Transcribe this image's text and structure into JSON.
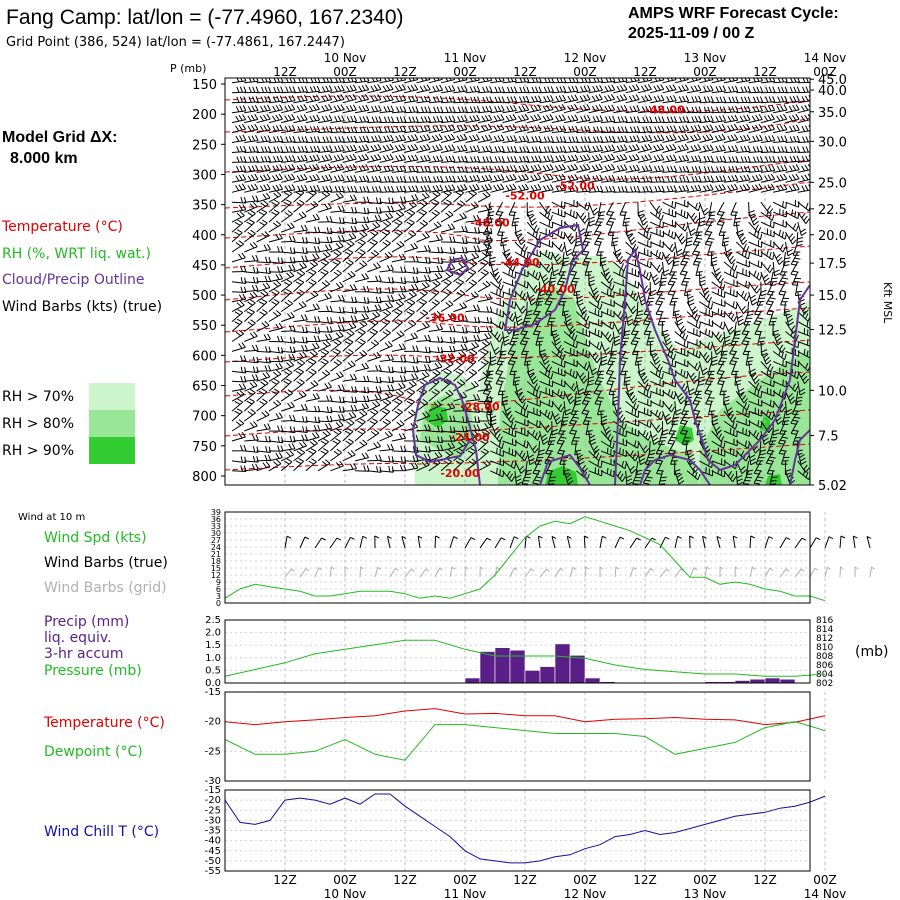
{
  "header": {
    "title": "Fang Camp:  lat/lon = (-77.4960, 167.2340)",
    "grid_point": "Grid Point (386, 524) lat/lon = (-77.4861, 167.2447)",
    "cycle_label": "AMPS WRF Forecast Cycle:",
    "cycle_value": "2025-11-09 / 00  Z",
    "model_grid_label": "Model Grid ΔX:",
    "model_grid_value": "8.000 km"
  },
  "colors": {
    "temperature": "#e00000",
    "rh": "#22bb22",
    "cloud": "#663399",
    "wind": "#000000",
    "wind_grid": "#b0b0b0",
    "precip_bar": "#5a1f86",
    "pressure": "#22bb22",
    "wind_chill": "#1010a0",
    "rh70": "#ccf5cc",
    "rh80": "#99e699",
    "rh90": "#33cc33"
  },
  "time_axis": {
    "tick_labels": [
      "12Z",
      "00Z",
      "12Z",
      "00Z",
      "12Z",
      "00Z",
      "12Z",
      "00Z",
      "12Z",
      "00Z"
    ],
    "date_labels": [
      "10 Nov",
      "11 Nov",
      "12 Nov",
      "13 Nov",
      "14 Nov"
    ],
    "date_label_tick_index": [
      1,
      3,
      5,
      7,
      9
    ]
  },
  "legend_upper": {
    "temperature": "Temperature (°C)",
    "rh": "RH (%, WRT liq. wat.)",
    "cloud": "Cloud/Precip Outline",
    "wind": "Wind Barbs (kts) (true)",
    "rh70": "RH > 70%",
    "rh80": "RH > 80%",
    "rh90": "RH > 90%"
  },
  "legend_lower": {
    "wind10m": "Wind at 10 m",
    "wind_spd": "Wind Spd (kts)",
    "wind_barbs_true": "Wind Barbs (true)",
    "wind_barbs_grid": "Wind Barbs (grid)",
    "precip_l1": "Precip (mm)",
    "precip_l2": "liq. equiv.",
    "precip_l3": "3-hr accum",
    "pressure": "Pressure (mb)",
    "temperature": "Temperature (°C)",
    "dewpoint": "Dewpoint (°C)",
    "wind_chill": "Wind Chill T (°C)",
    "pressure_unit": "(mb)"
  },
  "chart_data": [
    {
      "type": "area",
      "name": "time-height cross section",
      "ylabel": "P (mb)",
      "ylabel_right": "Kft MSL",
      "pressure_ticks": [
        "150",
        "200",
        "250",
        "300",
        "350",
        "400",
        "450",
        "500",
        "550",
        "600",
        "650",
        "700",
        "750",
        "800"
      ],
      "pressure_range": [
        140,
        815
      ],
      "height_ticks": [
        {
          "label": "45.0",
          "p": 142
        },
        {
          "label": "40.0",
          "p": 160
        },
        {
          "label": "35.0",
          "p": 196
        },
        {
          "label": "30.0",
          "p": 245
        },
        {
          "label": "25.0",
          "p": 313
        },
        {
          "label": "22.5",
          "p": 357
        },
        {
          "label": "20.0",
          "p": 400
        },
        {
          "label": "17.5",
          "p": 447
        },
        {
          "label": "15.0",
          "p": 500
        },
        {
          "label": "12.5",
          "p": 557
        },
        {
          "label": "10.0",
          "p": 658
        },
        {
          "label": "7.5",
          "p": 733
        },
        {
          "label": "5.02",
          "p": 815
        }
      ],
      "temperature_contours": [
        {
          "label": "-48.00",
          "t": 76,
          "p": 192
        },
        {
          "label": "-52.00",
          "t": 58,
          "p": 318
        },
        {
          "label": "-52.00",
          "t": 48,
          "p": 335
        },
        {
          "label": "-48.00",
          "t": 41,
          "p": 380
        },
        {
          "label": "-44.00",
          "t": 47,
          "p": 445
        },
        {
          "label": "-40.00",
          "t": 54,
          "p": 490
        },
        {
          "label": "-36.00",
          "t": 32,
          "p": 537
        },
        {
          "label": "-32.00",
          "t": 34,
          "p": 605
        },
        {
          "label": "-28.00",
          "t": 39,
          "p": 685
        },
        {
          "label": "-24.00",
          "t": 37,
          "p": 735
        },
        {
          "label": "-20.00",
          "t": 35,
          "p": 795
        }
      ]
    },
    {
      "type": "line",
      "name": "Wind Spd (kts)",
      "ylim": [
        0,
        39
      ],
      "y_ticks": [
        "39",
        "36",
        "33",
        "30",
        "27",
        "24",
        "21",
        "18",
        "15",
        "12",
        "9",
        "6",
        "3",
        "0"
      ],
      "x_hours": [
        0,
        3,
        6,
        9,
        12,
        15,
        18,
        21,
        24,
        27,
        30,
        33,
        36,
        39,
        42,
        45,
        48,
        51,
        54,
        57,
        60,
        63,
        66,
        69,
        72,
        75,
        78,
        81,
        84,
        87,
        90,
        93,
        96,
        99,
        102,
        105,
        108,
        111,
        114,
        117,
        120
      ],
      "values": [
        2,
        6,
        8,
        7,
        6,
        5,
        3,
        3,
        4,
        5,
        5,
        5,
        4,
        2,
        3,
        2,
        4,
        6,
        12,
        20,
        28,
        33,
        35,
        34,
        37,
        35,
        33,
        31,
        28,
        25,
        18,
        11,
        11,
        8,
        9,
        8,
        6,
        5,
        3,
        3,
        1
      ]
    },
    {
      "type": "bar",
      "name": "Precip (mm) liq. equiv. 3-hr accum",
      "ylim": [
        0,
        2.5
      ],
      "y_ticks": [
        "2.5",
        "2.0",
        "1.5",
        "1.0",
        "0.5",
        "0.0"
      ],
      "bar_hours": [
        48,
        51,
        54,
        57,
        60,
        63,
        66,
        69,
        72,
        75,
        96,
        99,
        102,
        105,
        108,
        111
      ],
      "values": [
        0.2,
        1.25,
        1.4,
        1.3,
        0.5,
        0.65,
        1.55,
        1.1,
        0.2,
        0.05,
        0.05,
        0.05,
        0.1,
        0.15,
        0.2,
        0.15
      ],
      "pressure_series": {
        "name": "Pressure (mb)",
        "ylim": [
          802,
          816
        ],
        "right_ticks": [
          "816",
          "814",
          "812",
          "810",
          "808",
          "806",
          "804",
          "802"
        ],
        "x_hours": [
          0,
          6,
          12,
          18,
          24,
          30,
          36,
          42,
          48,
          54,
          60,
          66,
          72,
          78,
          84,
          90,
          96,
          102,
          108,
          114,
          120
        ],
        "values": [
          803.5,
          805,
          806.5,
          808.5,
          809.5,
          810.5,
          811.5,
          811.5,
          809.5,
          808,
          808,
          808,
          807.5,
          806,
          805,
          804.5,
          804,
          804,
          803.5,
          803.5,
          804
        ]
      }
    },
    {
      "type": "line",
      "name": "Temperature / Dewpoint (°C)",
      "ylim": [
        -30,
        -15
      ],
      "y_ticks": [
        "-15",
        "-20",
        "-25",
        "-30"
      ],
      "series": [
        {
          "name": "Temperature",
          "x_hours": [
            0,
            6,
            12,
            18,
            24,
            30,
            36,
            42,
            48,
            54,
            60,
            66,
            72,
            78,
            84,
            90,
            96,
            102,
            108,
            114,
            120
          ],
          "values": [
            -20,
            -20.5,
            -20,
            -19.7,
            -19.3,
            -19,
            -18.2,
            -17.8,
            -18.7,
            -18.6,
            -19,
            -19,
            -20,
            -19.6,
            -19.5,
            -19.3,
            -19.6,
            -19.7,
            -20.5,
            -20.1,
            -19
          ]
        },
        {
          "name": "Dewpoint",
          "x_hours": [
            0,
            6,
            12,
            18,
            24,
            30,
            36,
            42,
            48,
            54,
            60,
            66,
            72,
            78,
            84,
            90,
            96,
            102,
            108,
            114,
            120
          ],
          "values": [
            -23,
            -25.5,
            -25.5,
            -25,
            -23,
            -25.5,
            -26.5,
            -20.5,
            -20.5,
            -21,
            -21.5,
            -22,
            -22,
            -22,
            -22.5,
            -25.5,
            -24.5,
            -23.5,
            -21,
            -20,
            -21.5
          ]
        }
      ]
    },
    {
      "type": "line",
      "name": "Wind Chill T (°C)",
      "ylim": [
        -55,
        -15
      ],
      "y_ticks": [
        "-15",
        "-20",
        "-25",
        "-30",
        "-35",
        "-40",
        "-45",
        "-50",
        "-55"
      ],
      "x_hours": [
        0,
        3,
        6,
        9,
        12,
        15,
        18,
        21,
        24,
        27,
        30,
        33,
        36,
        39,
        42,
        45,
        48,
        51,
        54,
        57,
        60,
        63,
        66,
        69,
        72,
        75,
        78,
        81,
        84,
        87,
        90,
        93,
        96,
        99,
        102,
        105,
        108,
        111,
        114,
        117,
        120
      ],
      "values": [
        -20,
        -31,
        -32,
        -30,
        -20,
        -19,
        -20,
        -22,
        -19,
        -22,
        -17,
        -17,
        -23,
        -28,
        -33,
        -38,
        -45,
        -49,
        -50,
        -51,
        -51,
        -50,
        -48,
        -47,
        -44,
        -42,
        -38,
        -37,
        -35,
        -37,
        -36,
        -34,
        -32,
        -30,
        -28,
        -27,
        -26,
        -24,
        -23,
        -21,
        -18
      ]
    }
  ]
}
